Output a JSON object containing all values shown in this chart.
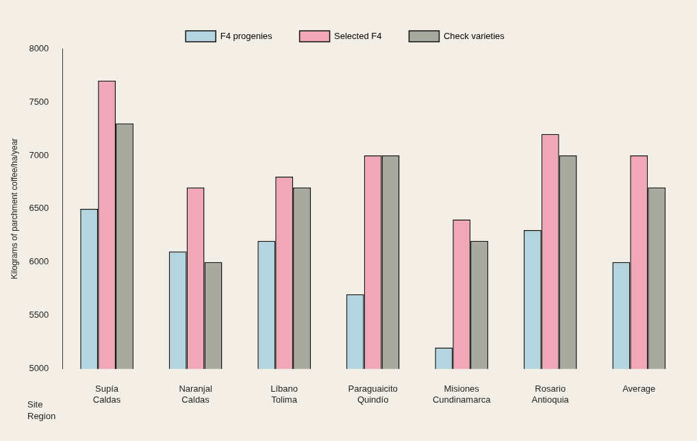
{
  "chart_data": {
    "type": "bar",
    "ylabel": "Kilograms of parchment coffee/ha/year",
    "categories": [
      "Supía\nCaldas",
      "Naranjal\nCaldas",
      "Líbano\nTolima",
      "Paraguaicito\nQuindío",
      "Misiones\nCundinamarca",
      "Rosario\nAntioquia",
      "Average"
    ],
    "series": [
      {
        "name": "F4 progenies",
        "color": "#b4d4e0",
        "values": [
          6500,
          6100,
          6200,
          5700,
          5200,
          6300,
          6000
        ]
      },
      {
        "name": "Selected F4",
        "color": "#f0a8b8",
        "values": [
          7700,
          6700,
          6800,
          7000,
          6400,
          7200,
          7000
        ]
      },
      {
        "name": "Check varieties",
        "color": "#a8aaa0",
        "values": [
          7300,
          6000,
          6700,
          7000,
          6200,
          7000,
          6700
        ]
      }
    ],
    "ylim": [
      5000,
      8000
    ],
    "yticks": [
      5000,
      5500,
      6000,
      6500,
      7000,
      7500,
      8000
    ],
    "grid": false,
    "legend": "top",
    "annotations": [
      "Site\nRegion"
    ]
  }
}
